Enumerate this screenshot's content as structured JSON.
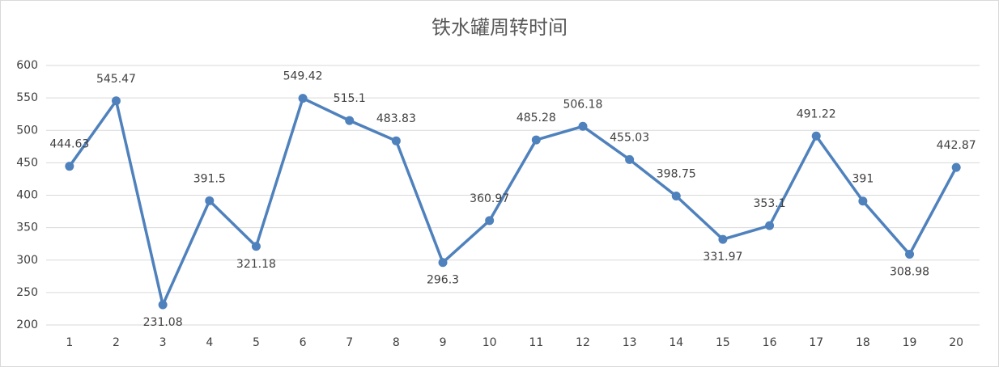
{
  "chart_data": {
    "type": "line",
    "title": "铁水罐周转时间",
    "categories": [
      "1",
      "2",
      "3",
      "4",
      "5",
      "6",
      "7",
      "8",
      "9",
      "10",
      "11",
      "12",
      "13",
      "14",
      "15",
      "16",
      "17",
      "18",
      "19",
      "20"
    ],
    "series": [
      {
        "name": "铁水罐周转时间",
        "color": "#4f81bd",
        "values": [
          444.63,
          545.47,
          231.08,
          391.5,
          321.18,
          549.42,
          515.1,
          483.83,
          296.3,
          360.97,
          485.28,
          506.18,
          455.03,
          398.75,
          331.97,
          353.1,
          491.22,
          391,
          308.98,
          442.87
        ]
      }
    ],
    "ylim": [
      200,
      600
    ],
    "yticks": [
      200,
      250,
      300,
      350,
      400,
      450,
      500,
      550,
      600
    ],
    "grid": true,
    "legend": false
  }
}
